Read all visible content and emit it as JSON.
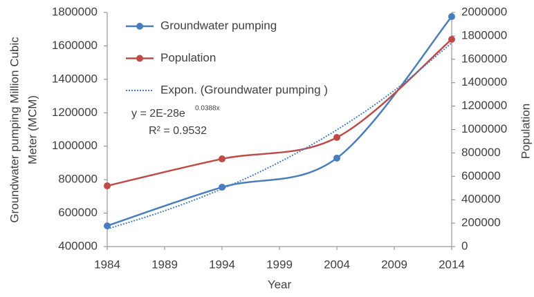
{
  "chart_data": {
    "type": "line",
    "x": [
      1984,
      1994,
      2004,
      2014
    ],
    "xlim": [
      1984,
      2014
    ],
    "xticks": [
      1984,
      1989,
      1994,
      1999,
      2004,
      2009,
      2014
    ],
    "ylim": [
      400000,
      1800000
    ],
    "yticks": [
      400000,
      600000,
      800000,
      1000000,
      1200000,
      1400000,
      1600000,
      1800000
    ],
    "y2lim": [
      0,
      2000000
    ],
    "y2ticks": [
      0,
      200000,
      400000,
      600000,
      800000,
      1000000,
      1200000,
      1400000,
      1600000,
      1800000,
      2000000
    ],
    "xlabel": "Year",
    "ylabel": [
      "Groundwater pumping Million Cubic",
      "Meter (MCM)"
    ],
    "y2label": "Population",
    "grid": false,
    "series": [
      {
        "name": "Groundwater pumping",
        "color": "#4a7ebb",
        "values": [
          524000,
          755000,
          929000,
          1775000
        ],
        "marker": true
      },
      {
        "name": "Population",
        "color": "#be4b48",
        "axis": "y2",
        "values": [
          519000,
          749000,
          932000,
          1770000
        ],
        "marker": true
      },
      {
        "name": "Expon. (Groundwater pumping )",
        "color": "#4a7ebb",
        "dotted": true,
        "x": [
          1984,
          1989,
          1994,
          1999,
          2004,
          2009,
          2014
        ],
        "values": [
          505000,
          614000,
          745000,
          905000,
          1098000,
          1333000,
          1618000
        ]
      }
    ],
    "annotations": [
      "y = 2E-28e",
      "0.0388x",
      "R² = 0.9532"
    ]
  }
}
